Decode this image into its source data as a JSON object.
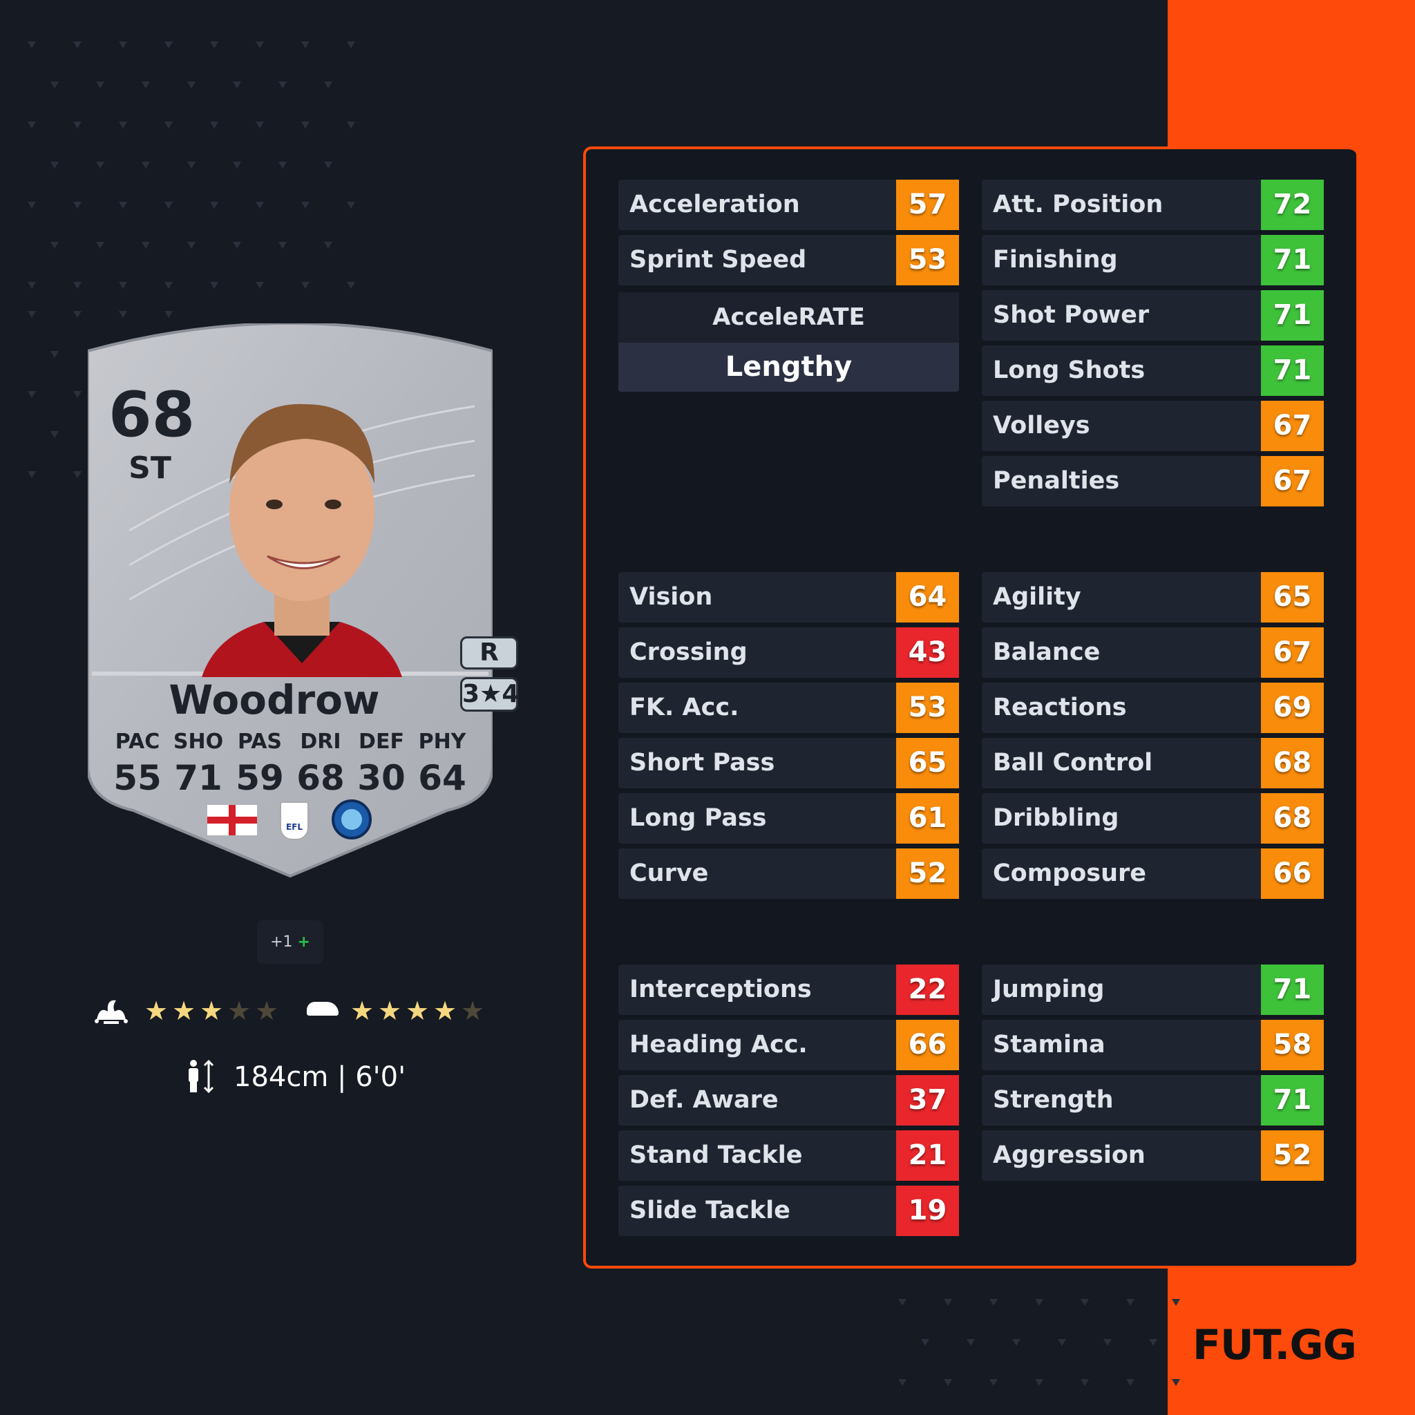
{
  "colors": {
    "brand": "#fe4a0a",
    "high": "#3ec23a",
    "mid": "#f98c0a",
    "low": "#e8262b",
    "star_on": "#f5d77f",
    "star_off": "#4e4838"
  },
  "card": {
    "rating": "68",
    "position": "ST",
    "name": "Woodrow",
    "preferred_foot": "R",
    "skill_weak": "3★4",
    "face_stats": [
      {
        "label": "PAC",
        "value": "55"
      },
      {
        "label": "SHO",
        "value": "71"
      },
      {
        "label": "PAS",
        "value": "59"
      },
      {
        "label": "DRI",
        "value": "68"
      },
      {
        "label": "DEF",
        "value": "30"
      },
      {
        "label": "PHY",
        "value": "64"
      }
    ],
    "nation": "England",
    "league": "EFL League One",
    "club": "Wycombe Wanderers",
    "league_badge_text": "EFL"
  },
  "chem": {
    "label": "+1",
    "plus": "+"
  },
  "skill_moves": {
    "icon": "jester-hat-icon",
    "stars": 3,
    "max": 5
  },
  "weak_foot": {
    "icon": "boot-icon",
    "stars": 4,
    "max": 5
  },
  "height": {
    "icon": "height-icon",
    "text": "184cm | 6'0'"
  },
  "accelerate": {
    "title": "AcceleRATE",
    "value": "Lengthy"
  },
  "groups": [
    {
      "left": [
        {
          "label": "Acceleration",
          "value": "57",
          "tier": "mid"
        },
        {
          "label": "Sprint Speed",
          "value": "53",
          "tier": "mid"
        }
      ],
      "right": [
        {
          "label": "Att. Position",
          "value": "72",
          "tier": "high"
        },
        {
          "label": "Finishing",
          "value": "71",
          "tier": "high"
        },
        {
          "label": "Shot Power",
          "value": "71",
          "tier": "high"
        },
        {
          "label": "Long Shots",
          "value": "71",
          "tier": "high"
        },
        {
          "label": "Volleys",
          "value": "67",
          "tier": "mid"
        },
        {
          "label": "Penalties",
          "value": "67",
          "tier": "mid"
        }
      ]
    },
    {
      "left": [
        {
          "label": "Vision",
          "value": "64",
          "tier": "mid"
        },
        {
          "label": "Crossing",
          "value": "43",
          "tier": "low"
        },
        {
          "label": "FK. Acc.",
          "value": "53",
          "tier": "mid"
        },
        {
          "label": "Short Pass",
          "value": "65",
          "tier": "mid"
        },
        {
          "label": "Long Pass",
          "value": "61",
          "tier": "mid"
        },
        {
          "label": "Curve",
          "value": "52",
          "tier": "mid"
        }
      ],
      "right": [
        {
          "label": "Agility",
          "value": "65",
          "tier": "mid"
        },
        {
          "label": "Balance",
          "value": "67",
          "tier": "mid"
        },
        {
          "label": "Reactions",
          "value": "69",
          "tier": "mid"
        },
        {
          "label": "Ball Control",
          "value": "68",
          "tier": "mid"
        },
        {
          "label": "Dribbling",
          "value": "68",
          "tier": "mid"
        },
        {
          "label": "Composure",
          "value": "66",
          "tier": "mid"
        }
      ]
    },
    {
      "left": [
        {
          "label": "Interceptions",
          "value": "22",
          "tier": "low"
        },
        {
          "label": "Heading Acc.",
          "value": "66",
          "tier": "mid"
        },
        {
          "label": "Def. Aware",
          "value": "37",
          "tier": "low"
        },
        {
          "label": "Stand Tackle",
          "value": "21",
          "tier": "low"
        },
        {
          "label": "Slide Tackle",
          "value": "19",
          "tier": "low"
        }
      ],
      "right": [
        {
          "label": "Jumping",
          "value": "71",
          "tier": "high"
        },
        {
          "label": "Stamina",
          "value": "58",
          "tier": "mid"
        },
        {
          "label": "Strength",
          "value": "71",
          "tier": "high"
        },
        {
          "label": "Aggression",
          "value": "52",
          "tier": "mid"
        }
      ]
    }
  ],
  "logo": "FUT.GG"
}
